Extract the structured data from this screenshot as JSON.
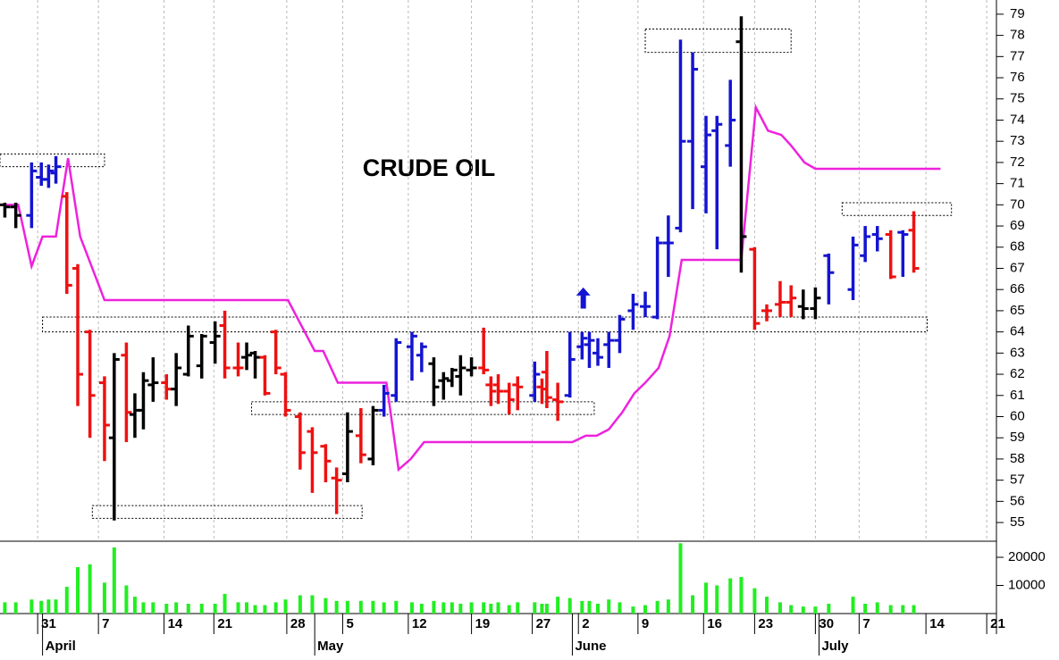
{
  "chart_data": [
    {
      "type": "ohlc",
      "title": "CRUDE OIL",
      "x": [
        0.4,
        1.3,
        2.6,
        3.4,
        4.0,
        4.6,
        5.5,
        6.4,
        7.4,
        8.6,
        9.4,
        10.4,
        11.1,
        11.8,
        12.6,
        13.7,
        14.5,
        15.5,
        16.6,
        17.7,
        18.5,
        19.6,
        20.3,
        21.0,
        21.8,
        22.7,
        23.5,
        24.7,
        25.7,
        26.8,
        27.7,
        28.6,
        29.7,
        30.7,
        31.6,
        32.6,
        33.9,
        34.7,
        35.7,
        36.5,
        37.2,
        37.9,
        38.8,
        39.8,
        40.4,
        41.0,
        41.9,
        42.6,
        44.0,
        44.6,
        45.0,
        45.9,
        46.9,
        47.9,
        48.5,
        49.2,
        50.1,
        51.0,
        52.1,
        53.1,
        54.1,
        55.0,
        56.0,
        57.0,
        58.1,
        59.0,
        60.1,
        61.0,
        62.1,
        63.1,
        64.2,
        65.1,
        66.1,
        67.1,
        68.2,
        70.2,
        71.2,
        72.2,
        73.3,
        74.3,
        75.2
      ],
      "open": [
        70.0,
        69.9,
        69.5,
        71.3,
        71.2,
        71.5,
        70.4,
        67.0,
        64.0,
        61.6,
        59.0,
        62.9,
        60.1,
        60.3,
        61.5,
        61.6,
        61.3,
        62.0,
        62.4,
        63.5,
        64.3,
        62.3,
        62.8,
        63.0,
        62.8,
        64.0,
        62.0,
        60.0,
        59.3,
        58.6,
        57.1,
        57.3,
        59.1,
        58.0,
        60.3,
        61.0,
        63.3,
        62.9,
        62.5,
        61.7,
        61.7,
        61.9,
        62.2,
        62.3,
        61.5,
        61.5,
        61.2,
        61.5,
        61.0,
        61.4,
        62.1,
        60.8,
        61.0,
        63.3,
        63.4,
        63.0,
        63.4,
        63.6,
        65.0,
        65.2,
        64.7,
        68.2,
        68.9,
        73.0,
        71.8,
        73.5,
        72.8,
        77.7,
        67.9,
        65.0,
        65.3,
        65.4,
        65.2,
        65.1,
        67.6,
        66.0,
        67.6,
        68.6,
        68.6,
        68.7,
        68.8
      ],
      "high": [
        70.1,
        70.1,
        72.0,
        72.0,
        71.9,
        72.3,
        70.6,
        67.2,
        64.1,
        61.9,
        63.0,
        63.5,
        61.1,
        62.1,
        62.8,
        62.0,
        63.0,
        64.3,
        63.9,
        64.5,
        65.0,
        63.5,
        63.5,
        63.1,
        62.9,
        64.1,
        62.1,
        60.2,
        59.5,
        58.7,
        57.6,
        60.2,
        60.4,
        60.5,
        61.5,
        63.7,
        64.0,
        63.5,
        62.8,
        62.1,
        62.3,
        62.9,
        62.8,
        64.2,
        61.9,
        62.0,
        61.6,
        61.9,
        62.6,
        61.8,
        63.1,
        61.6,
        64.0,
        64.0,
        64.0,
        63.7,
        64.0,
        64.8,
        65.8,
        65.9,
        68.5,
        69.5,
        77.8,
        77.2,
        74.2,
        74.2,
        75.9,
        78.9,
        68.0,
        65.3,
        66.4,
        66.2,
        66.0,
        66.1,
        67.7,
        68.5,
        69.0,
        69.0,
        68.8,
        68.8,
        69.7
      ],
      "low": [
        69.4,
        68.9,
        68.9,
        70.9,
        70.8,
        71.0,
        65.8,
        60.5,
        59.0,
        57.9,
        55.1,
        58.8,
        59.0,
        59.4,
        60.7,
        60.8,
        60.5,
        61.9,
        61.8,
        62.5,
        61.8,
        61.9,
        62.2,
        61.8,
        61.0,
        62.0,
        60.0,
        57.5,
        56.4,
        56.9,
        55.4,
        56.9,
        57.8,
        57.7,
        60.0,
        60.7,
        61.7,
        62.1,
        60.5,
        60.8,
        61.4,
        61.0,
        61.9,
        62.0,
        60.5,
        60.6,
        60.1,
        60.3,
        60.7,
        60.6,
        60.4,
        59.8,
        60.9,
        62.7,
        62.3,
        62.4,
        62.3,
        63.0,
        64.1,
        64.7,
        64.6,
        66.6,
        68.7,
        69.8,
        69.6,
        67.9,
        71.8,
        66.8,
        64.1,
        64.5,
        64.7,
        64.7,
        64.6,
        64.6,
        65.3,
        65.5,
        67.3,
        67.8,
        66.5,
        66.6,
        66.8
      ],
      "close": [
        69.9,
        69.5,
        71.6,
        71.2,
        71.6,
        71.8,
        66.2,
        62.0,
        61.0,
        59.6,
        62.7,
        60.2,
        60.3,
        61.7,
        61.6,
        61.3,
        62.3,
        63.8,
        63.8,
        63.8,
        62.3,
        62.3,
        62.9,
        62.8,
        61.1,
        62.3,
        60.3,
        58.3,
        58.3,
        57.9,
        57.0,
        59.3,
        58.2,
        60.3,
        61.1,
        63.5,
        63.8,
        63.3,
        61.4,
        61.8,
        62.2,
        62.3,
        62.3,
        62.2,
        61.2,
        61.2,
        60.8,
        61.4,
        62.0,
        61.3,
        60.9,
        60.7,
        62.7,
        63.7,
        63.6,
        62.8,
        63.6,
        64.6,
        65.3,
        65.2,
        68.2,
        68.2,
        73.0,
        76.4,
        73.3,
        73.8,
        74.0,
        68.5,
        64.4,
        65.0,
        65.4,
        65.6,
        65.1,
        65.6,
        66.8,
        68.1,
        68.5,
        68.4,
        66.6,
        68.6,
        67.0
      ],
      "colors": [
        "#000000",
        "#000000",
        "#1414d2",
        "#1414d2",
        "#1414d2",
        "#1414d2",
        "#ee1111",
        "#ee1111",
        "#ee1111",
        "#ee1111",
        "#000000",
        "#ee1111",
        "#000000",
        "#000000",
        "#000000",
        "#ee1111",
        "#000000",
        "#000000",
        "#000000",
        "#000000",
        "#ee1111",
        "#ee1111",
        "#000000",
        "#000000",
        "#ee1111",
        "#ee1111",
        "#ee1111",
        "#ee1111",
        "#ee1111",
        "#ee1111",
        "#ee1111",
        "#000000",
        "#ee1111",
        "#000000",
        "#1414d2",
        "#1414d2",
        "#1414d2",
        "#1414d2",
        "#000000",
        "#000000",
        "#000000",
        "#000000",
        "#000000",
        "#ee1111",
        "#ee1111",
        "#ee1111",
        "#ee1111",
        "#ee1111",
        "#1414d2",
        "#ee1111",
        "#ee1111",
        "#ee1111",
        "#1414d2",
        "#1414d2",
        "#1414d2",
        "#1414d2",
        "#1414d2",
        "#1414d2",
        "#1414d2",
        "#1414d2",
        "#1414d2",
        "#1414d2",
        "#1414d2",
        "#1414d2",
        "#1414d2",
        "#1414d2",
        "#1414d2",
        "#000000",
        "#ee1111",
        "#ee1111",
        "#ee1111",
        "#ee1111",
        "#000000",
        "#000000",
        "#1414d2",
        "#1414d2",
        "#1414d2",
        "#1414d2",
        "#ee1111",
        "#1414d2",
        "#ee1111"
      ],
      "stop_line": {
        "color": "#ee22dd",
        "x": [
          0,
          1.5,
          2.6,
          3.5,
          4.6,
          5.6,
          6.6,
          8.6,
          23.7,
          25.9,
          26.6,
          27.8,
          31.8,
          32.8,
          33.8,
          34.9,
          47.1,
          48.2,
          49.1,
          50.1,
          51.2,
          52.2,
          53.1,
          54.2,
          55.1,
          56.1,
          61.0,
          62.2,
          63.2,
          64.3,
          65.1,
          66.2,
          67.1,
          77.4
        ],
        "values": [
          70.0,
          70.0,
          67.1,
          68.5,
          68.5,
          72.2,
          68.5,
          65.5,
          65.5,
          63.1,
          63.1,
          61.6,
          61.6,
          57.5,
          58.0,
          58.8,
          58.8,
          59.1,
          59.1,
          59.4,
          60.2,
          61.1,
          61.6,
          62.3,
          63.8,
          67.4,
          67.4,
          74.6,
          73.5,
          73.3,
          72.8,
          72.0,
          71.7,
          71.7
        ]
      },
      "boxes": [
        {
          "x": [
            0,
            8.6
          ],
          "y": [
            71.8,
            72.4
          ]
        },
        {
          "x": [
            53.1,
            65.1
          ],
          "y": [
            77.2,
            78.3
          ]
        },
        {
          "x": [
            69.3,
            78.3
          ],
          "y": [
            69.5,
            70.1
          ]
        },
        {
          "x": [
            3.5,
            76.3
          ],
          "y": [
            64.0,
            64.7
          ]
        },
        {
          "x": [
            20.7,
            48.9
          ],
          "y": [
            60.1,
            60.7
          ]
        },
        {
          "x": [
            7.6,
            29.8
          ],
          "y": [
            55.2,
            55.8
          ]
        }
      ],
      "arrow": {
        "x": 48.0,
        "y": [
          65.1,
          66.1
        ],
        "color": "#1414d2"
      },
      "xlim": [
        0,
        82
      ],
      "ylim": [
        54.16,
        79.67
      ],
      "yticks": [
        55,
        56,
        57,
        58,
        59,
        60,
        61,
        62,
        63,
        64,
        65,
        66,
        67,
        68,
        69,
        70,
        71,
        72,
        73,
        74,
        75,
        76,
        77,
        78,
        79
      ],
      "xticks": [
        {
          "value": 3.1,
          "label": "31"
        },
        {
          "value": 8.1,
          "label": "7"
        },
        {
          "value": 13.5,
          "label": "14"
        },
        {
          "value": 17.6,
          "label": "21"
        },
        {
          "value": 23.6,
          "label": "28"
        },
        {
          "value": 28.2,
          "label": "5"
        },
        {
          "value": 33.6,
          "label": "12"
        },
        {
          "value": 38.8,
          "label": "19"
        },
        {
          "value": 43.8,
          "label": "27"
        },
        {
          "value": 47.6,
          "label": "2"
        },
        {
          "value": 52.5,
          "label": "9"
        },
        {
          "value": 57.9,
          "label": "16"
        },
        {
          "value": 62.1,
          "label": "23"
        },
        {
          "value": 67.1,
          "label": "30"
        },
        {
          "value": 70.7,
          "label": "7"
        },
        {
          "value": 76.2,
          "label": "14"
        },
        {
          "value": 81.2,
          "label": "21"
        }
      ],
      "month_ticks": [
        {
          "value": 3.5,
          "label": "April"
        },
        {
          "value": 25.9,
          "label": "May"
        },
        {
          "value": 47.1,
          "label": "June"
        },
        {
          "value": 67.4,
          "label": "July"
        }
      ],
      "grid": true
    },
    {
      "type": "bar",
      "color": "#22ee22",
      "values": [
        4000,
        4000,
        5000,
        4500,
        5000,
        5000,
        9500,
        16500,
        17500,
        11000,
        23500,
        10000,
        6000,
        4000,
        4000,
        3500,
        4000,
        3500,
        3500,
        3500,
        7000,
        4000,
        4000,
        3000,
        3000,
        4000,
        5000,
        6500,
        6500,
        5500,
        4500,
        4500,
        4500,
        4500,
        4000,
        4500,
        4000,
        3500,
        4500,
        4000,
        4000,
        3500,
        4000,
        4000,
        3500,
        4000,
        3000,
        4000,
        4000,
        3500,
        3500,
        6000,
        5500,
        4500,
        4500,
        3500,
        5000,
        4000,
        2500,
        3000,
        4500,
        5000,
        25000,
        6500,
        11000,
        10000,
        12500,
        13000,
        9000,
        6000,
        4000,
        3000,
        2500,
        2500,
        3500,
        6000,
        3500,
        4000,
        3000,
        3000,
        3000
      ],
      "ylim": [
        0,
        25400
      ],
      "yticks": [
        10000,
        20000
      ]
    }
  ]
}
